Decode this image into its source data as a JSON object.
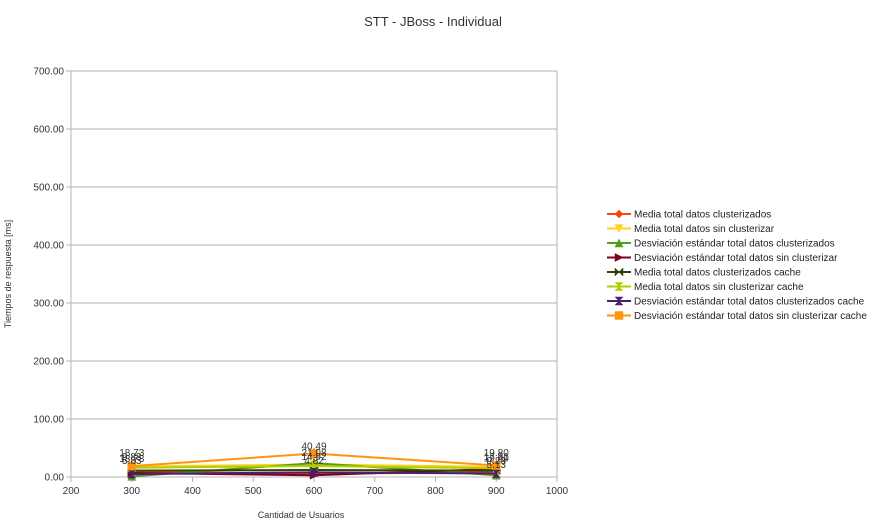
{
  "chart_data": {
    "type": "line",
    "title": "STT - JBoss - Individual",
    "xlabel": "Cantidad de Usuarios",
    "ylabel": "Tiempos de respuesta [ms]",
    "xlim": [
      200,
      1000
    ],
    "ylim": [
      0,
      700
    ],
    "x_ticks": [
      "200",
      "300",
      "400",
      "500",
      "600",
      "700",
      "800",
      "900",
      "1000"
    ],
    "y_ticks": [
      "0.00",
      "100.00",
      "200.00",
      "300.00",
      "400.00",
      "500.00",
      "600.00",
      "700.00"
    ],
    "grid": "horizontal",
    "legend_position": "right",
    "x": [
      300,
      600,
      900
    ],
    "series": [
      {
        "name": "Media total datos clusterizados",
        "values": [
          9.0,
          5.5,
          8.4
        ],
        "value_labels": [
          "",
          "",
          ""
        ],
        "color": "#ff420e",
        "marker": "diamond"
      },
      {
        "name": "Media total datos sin clusterizar",
        "values": [
          18.2,
          21.5,
          17.6
        ],
        "value_labels": [
          "",
          "",
          ""
        ],
        "color": "#ffd320",
        "marker": "triangle-down"
      },
      {
        "name": "Desviación estándar total datos clusterizados",
        "values": [
          1.0,
          24.0,
          3.0
        ],
        "value_labels": [
          "",
          "",
          ""
        ],
        "color": "#579d1c",
        "marker": "triangle-up"
      },
      {
        "name": "Desviación estándar total datos sin clusterizar",
        "values": [
          7.0,
          3.0,
          13.9
        ],
        "value_labels": [
          "",
          "",
          ""
        ],
        "color": "#7e0021",
        "marker": "triangle-right"
      },
      {
        "name": "Media total datos clusterizados cache",
        "values": [
          11.0,
          12.0,
          11.0
        ],
        "value_labels": [
          "",
          "",
          ""
        ],
        "color": "#314004",
        "marker": "bowtie"
      },
      {
        "name": "Media total datos sin clusterizar cache",
        "values": [
          16.0,
          19.0,
          15.0
        ],
        "value_labels": [
          "",
          "",
          ""
        ],
        "color": "#aecf00",
        "marker": "hourglass"
      },
      {
        "name": "Desviación estándar total datos clusterizados cache",
        "values": [
          5.0,
          8.0,
          6.0
        ],
        "value_labels": [
          "",
          "",
          ""
        ],
        "color": "#4b1f6f",
        "marker": "hourglass-v"
      },
      {
        "name": "Desviación estándar total datos sin clusterizar cache",
        "values": [
          18.73,
          40.49,
          19.8
        ],
        "value_labels": [
          "18.73",
          "40.49",
          "19.80"
        ],
        "color": "#ff950e",
        "marker": "square"
      }
    ],
    "overlapping_labels": {
      "300": [
        "18.73",
        "9.83",
        "5.83"
      ],
      "600": [
        "21.08",
        "14.92",
        "4.82"
      ],
      "900": [
        "19.80",
        "17.31",
        "9.23",
        "5.13"
      ]
    }
  }
}
